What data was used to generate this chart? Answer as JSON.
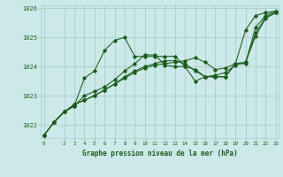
{
  "title": "Graphe pression niveau de la mer (hPa)",
  "bg_color": "#cce8e8",
  "grid_color": "#aacccc",
  "line_color": "#1a5c1a",
  "ylim": [
    1021.55,
    1026.1
  ],
  "yticks": [
    1022,
    1023,
    1024,
    1025,
    1026
  ],
  "xlim": [
    -0.3,
    23.3
  ],
  "xtick_vals": [
    0,
    2,
    3,
    4,
    5,
    6,
    7,
    8,
    9,
    10,
    11,
    12,
    13,
    14,
    15,
    16,
    17,
    18,
    19,
    20,
    21,
    22,
    23
  ],
  "series": [
    [
      1021.65,
      1022.1,
      1022.45,
      1022.65,
      1023.6,
      1023.85,
      1024.55,
      1024.9,
      1025.0,
      1024.35,
      1024.35,
      1024.35,
      1024.35,
      1024.35,
      1024.0,
      1023.9,
      1023.65,
      1023.65,
      1023.65,
      1024.1,
      1025.25,
      1025.75,
      1025.85,
      1025.9
    ],
    [
      1021.65,
      1022.1,
      1022.45,
      1022.65,
      1023.0,
      1023.15,
      1023.3,
      1023.55,
      1023.85,
      1024.1,
      1024.4,
      1024.4,
      1024.05,
      1024.0,
      1024.0,
      1023.5,
      1023.65,
      1023.65,
      1023.65,
      1024.1,
      1024.1,
      1025.35,
      1025.75,
      1025.9
    ],
    [
      1021.65,
      1022.1,
      1022.45,
      1022.7,
      1022.85,
      1023.0,
      1023.2,
      1023.4,
      1023.65,
      1023.85,
      1024.0,
      1024.1,
      1024.2,
      1024.2,
      1024.1,
      1023.85,
      1023.65,
      1023.7,
      1023.8,
      1024.05,
      1024.15,
      1025.15,
      1025.7,
      1025.85
    ],
    [
      1021.65,
      1022.1,
      1022.45,
      1022.7,
      1022.85,
      1023.0,
      1023.2,
      1023.4,
      1023.6,
      1023.8,
      1023.95,
      1024.05,
      1024.1,
      1024.15,
      1024.2,
      1024.3,
      1024.15,
      1023.9,
      1023.95,
      1024.1,
      1024.15,
      1025.05,
      1025.65,
      1025.85
    ]
  ]
}
